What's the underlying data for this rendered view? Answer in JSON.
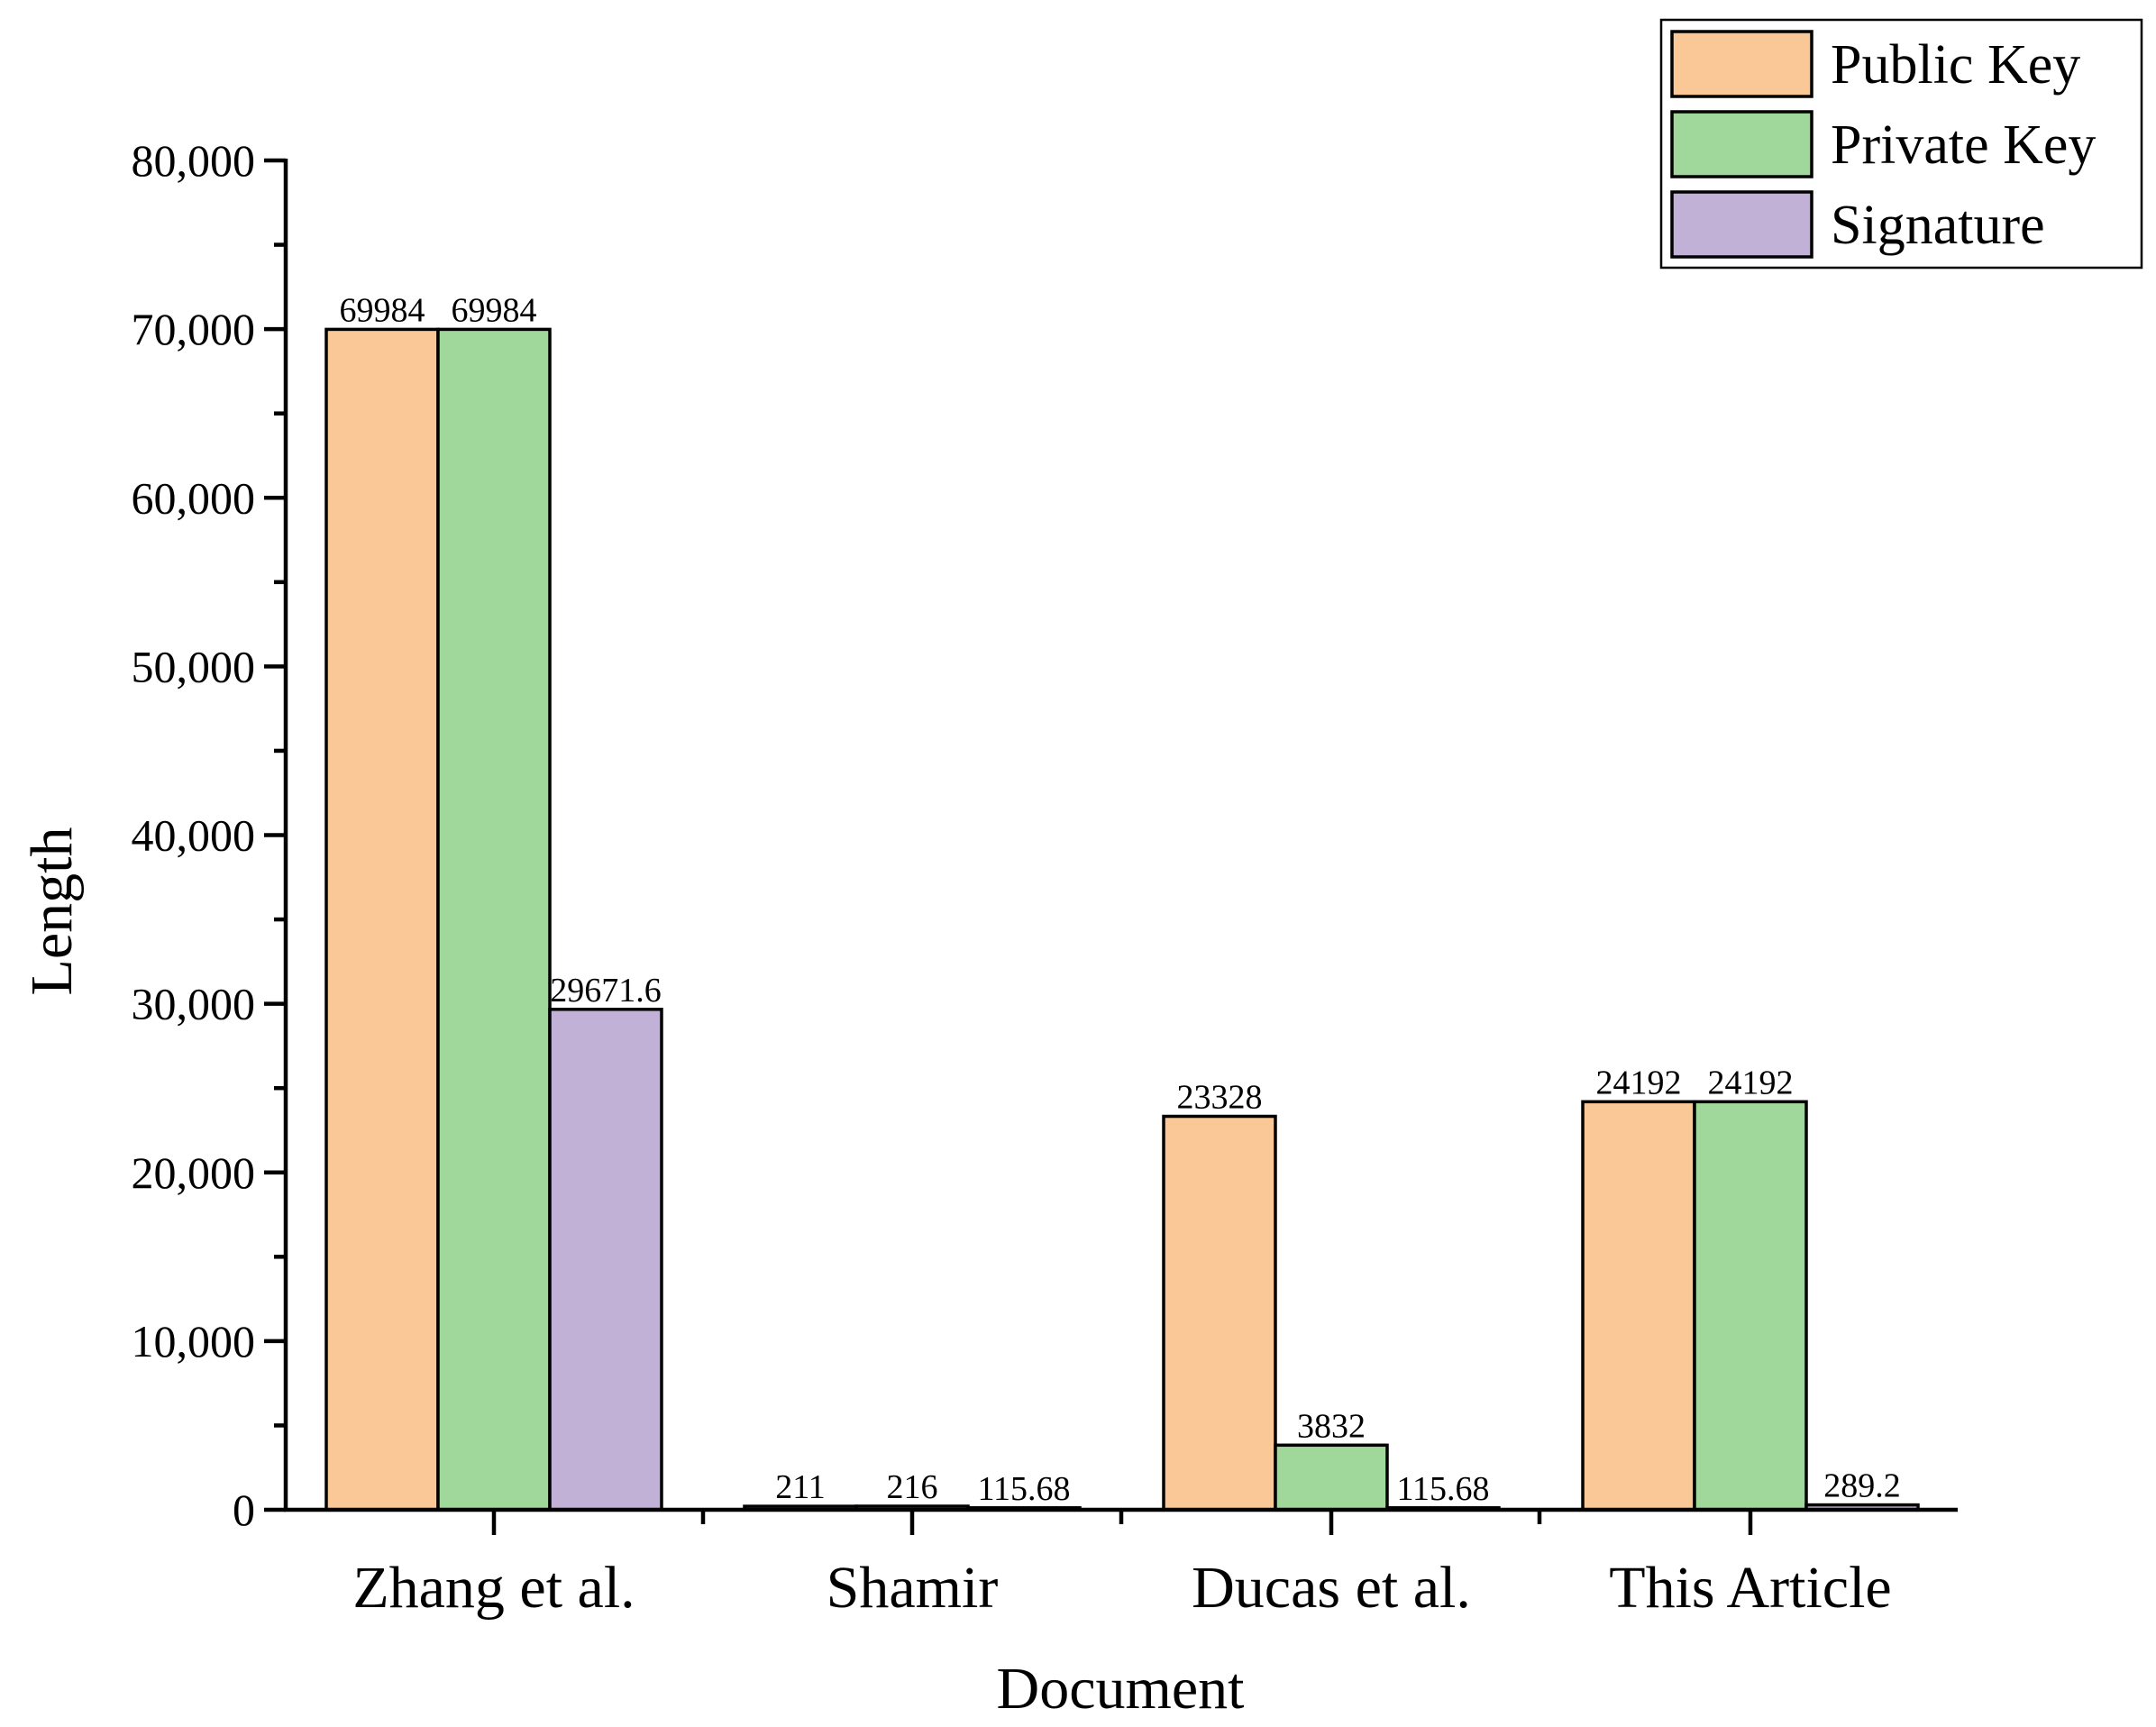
{
  "chart_data": {
    "type": "bar",
    "title": "",
    "xlabel": "Document",
    "ylabel": "Length",
    "categories": [
      "Zhang et al.",
      "Shamir",
      "Ducas et al.",
      "This Article"
    ],
    "series": [
      {
        "name": "Public Key",
        "color": "#FAC896",
        "values": [
          69984,
          211,
          23328,
          24192
        ],
        "labels": [
          "69984",
          "211",
          "23328",
          "24192"
        ]
      },
      {
        "name": "Private Key",
        "color": "#A0D79B",
        "values": [
          69984,
          216,
          3832,
          24192
        ],
        "labels": [
          "69984",
          "216",
          "3832",
          "24192"
        ]
      },
      {
        "name": "Signature",
        "color": "#C2B1D7",
        "values": [
          29671.6,
          115.68,
          115.68,
          289.2
        ],
        "labels": [
          "29671.6",
          "115.68",
          "115.68",
          "289.2"
        ]
      }
    ],
    "ylim": [
      0,
      80000
    ],
    "yticks": [
      0,
      10000,
      20000,
      30000,
      40000,
      50000,
      60000,
      70000,
      80000
    ],
    "ytick_labels": [
      "0",
      "10,000",
      "20,000",
      "30,000",
      "40,000",
      "50,000",
      "60,000",
      "70,000",
      "80,000"
    ],
    "grid": false,
    "legend_position": "top-right",
    "label_overrides": [
      {
        "series": 2,
        "category": 1,
        "text": "115.68"
      }
    ]
  }
}
